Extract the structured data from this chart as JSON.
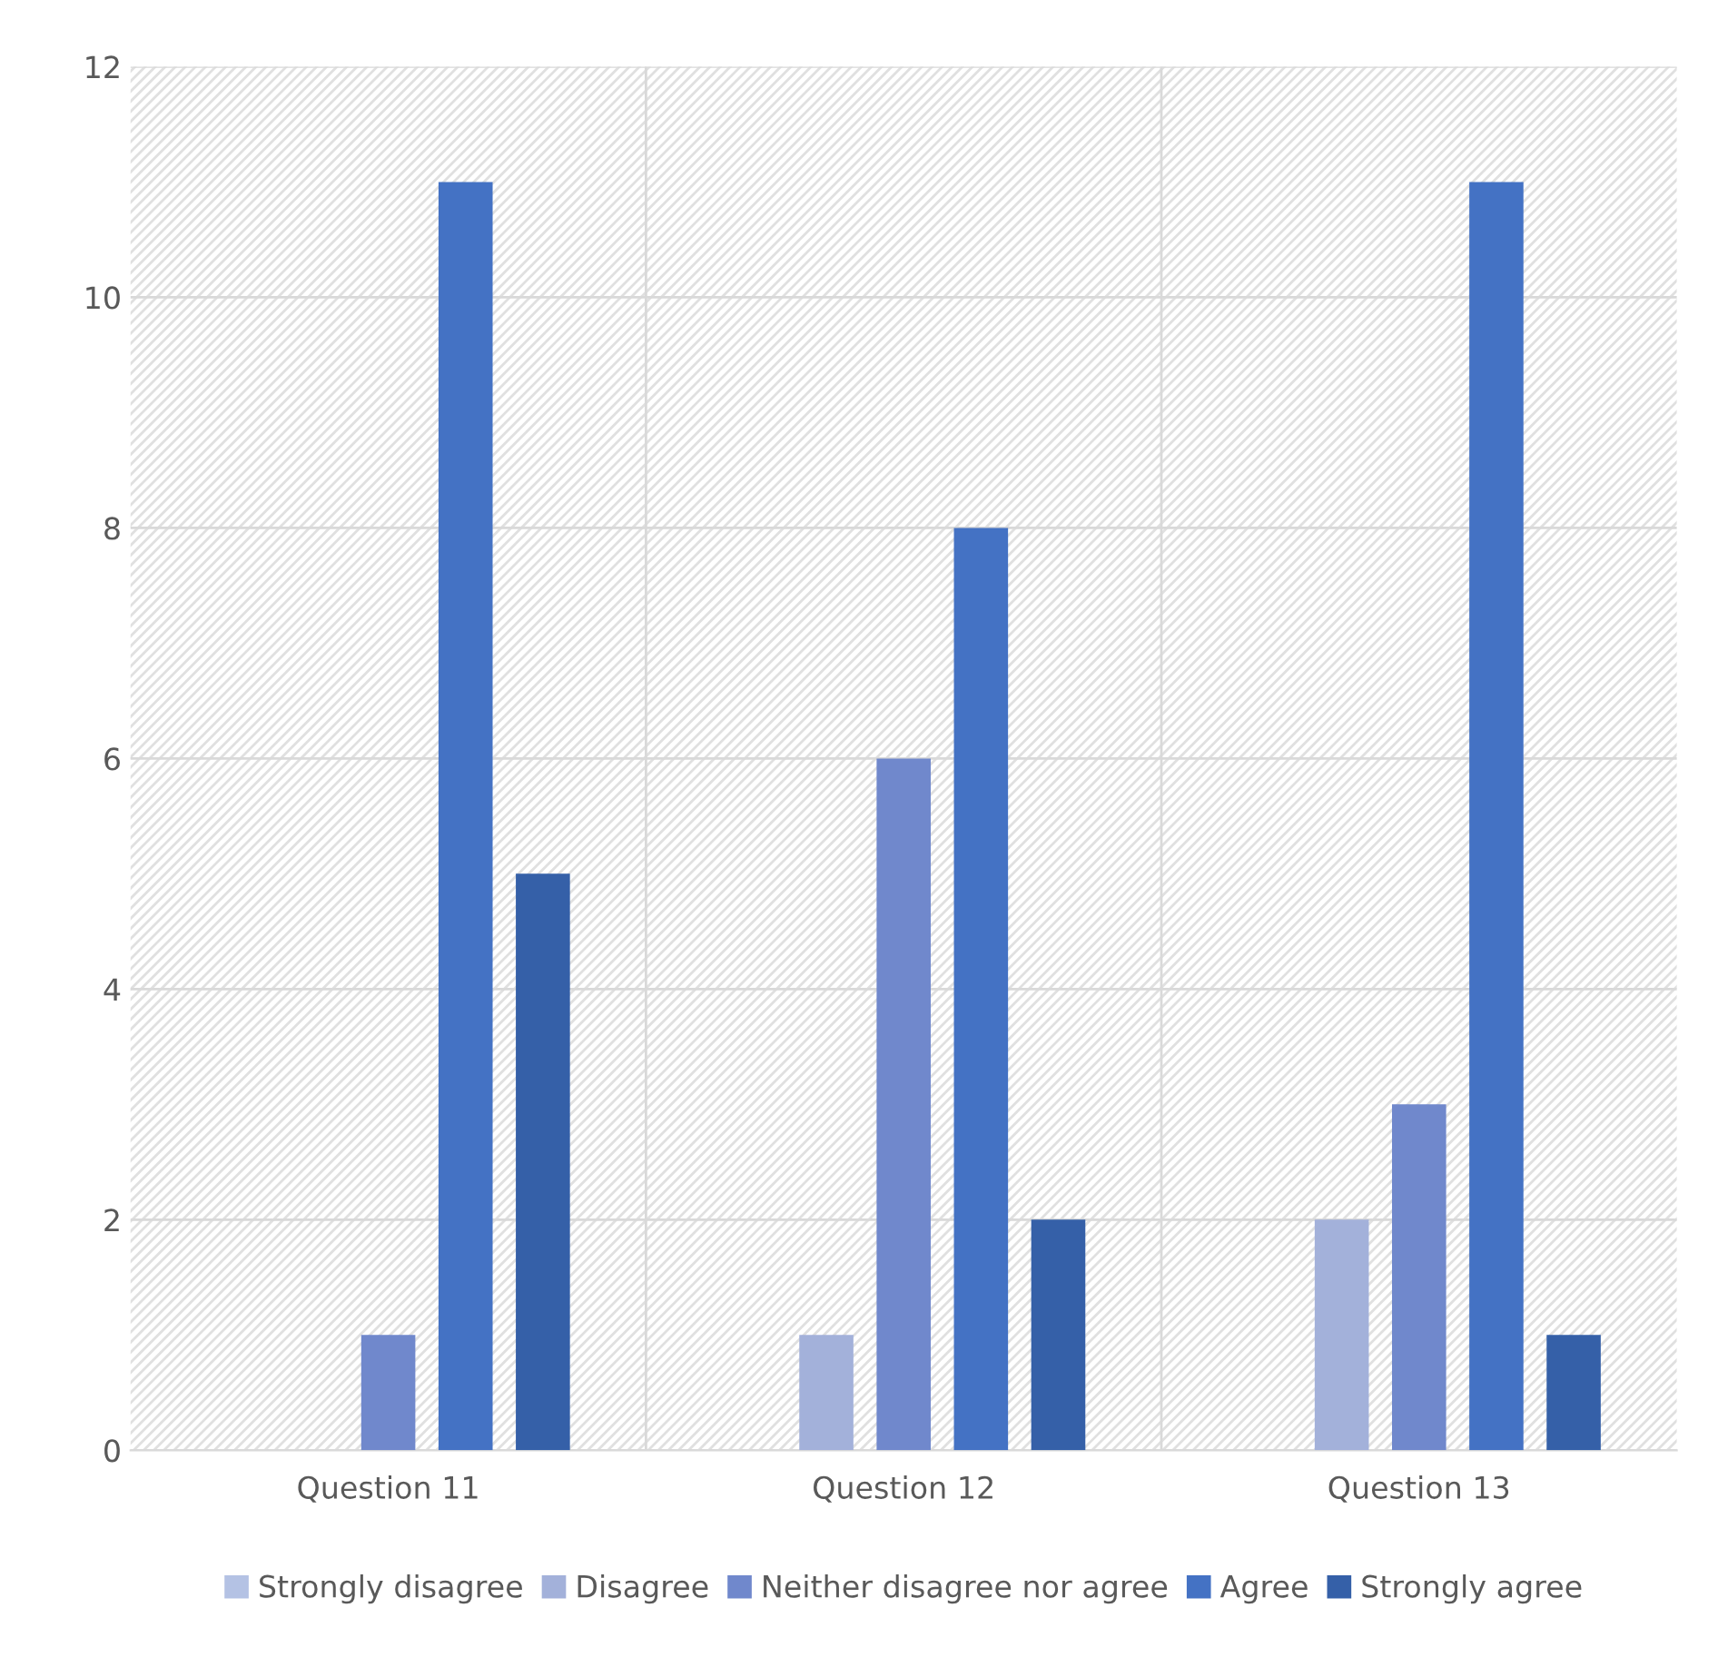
{
  "chart_data": {
    "type": "bar",
    "categories": [
      "Question 11",
      "Question 12",
      "Question 13"
    ],
    "series": [
      {
        "name": "Strongly disagree",
        "color": "#b4c2e4",
        "values": [
          0,
          0,
          0
        ]
      },
      {
        "name": "Disagree",
        "color": "#a3b1da",
        "values": [
          0,
          1,
          2
        ]
      },
      {
        "name": "Neither disagree nor agree",
        "color": "#7088cc",
        "values": [
          1,
          6,
          3
        ]
      },
      {
        "name": "Agree",
        "color": "#4472c4",
        "values": [
          11,
          8,
          11
        ]
      },
      {
        "name": "Strongly agree",
        "color": "#3560a8",
        "values": [
          5,
          2,
          1
        ]
      }
    ],
    "ylim": [
      0,
      12
    ],
    "yticks": [
      0,
      2,
      4,
      6,
      8,
      10,
      12
    ],
    "grid": true,
    "legend": "bottom"
  }
}
